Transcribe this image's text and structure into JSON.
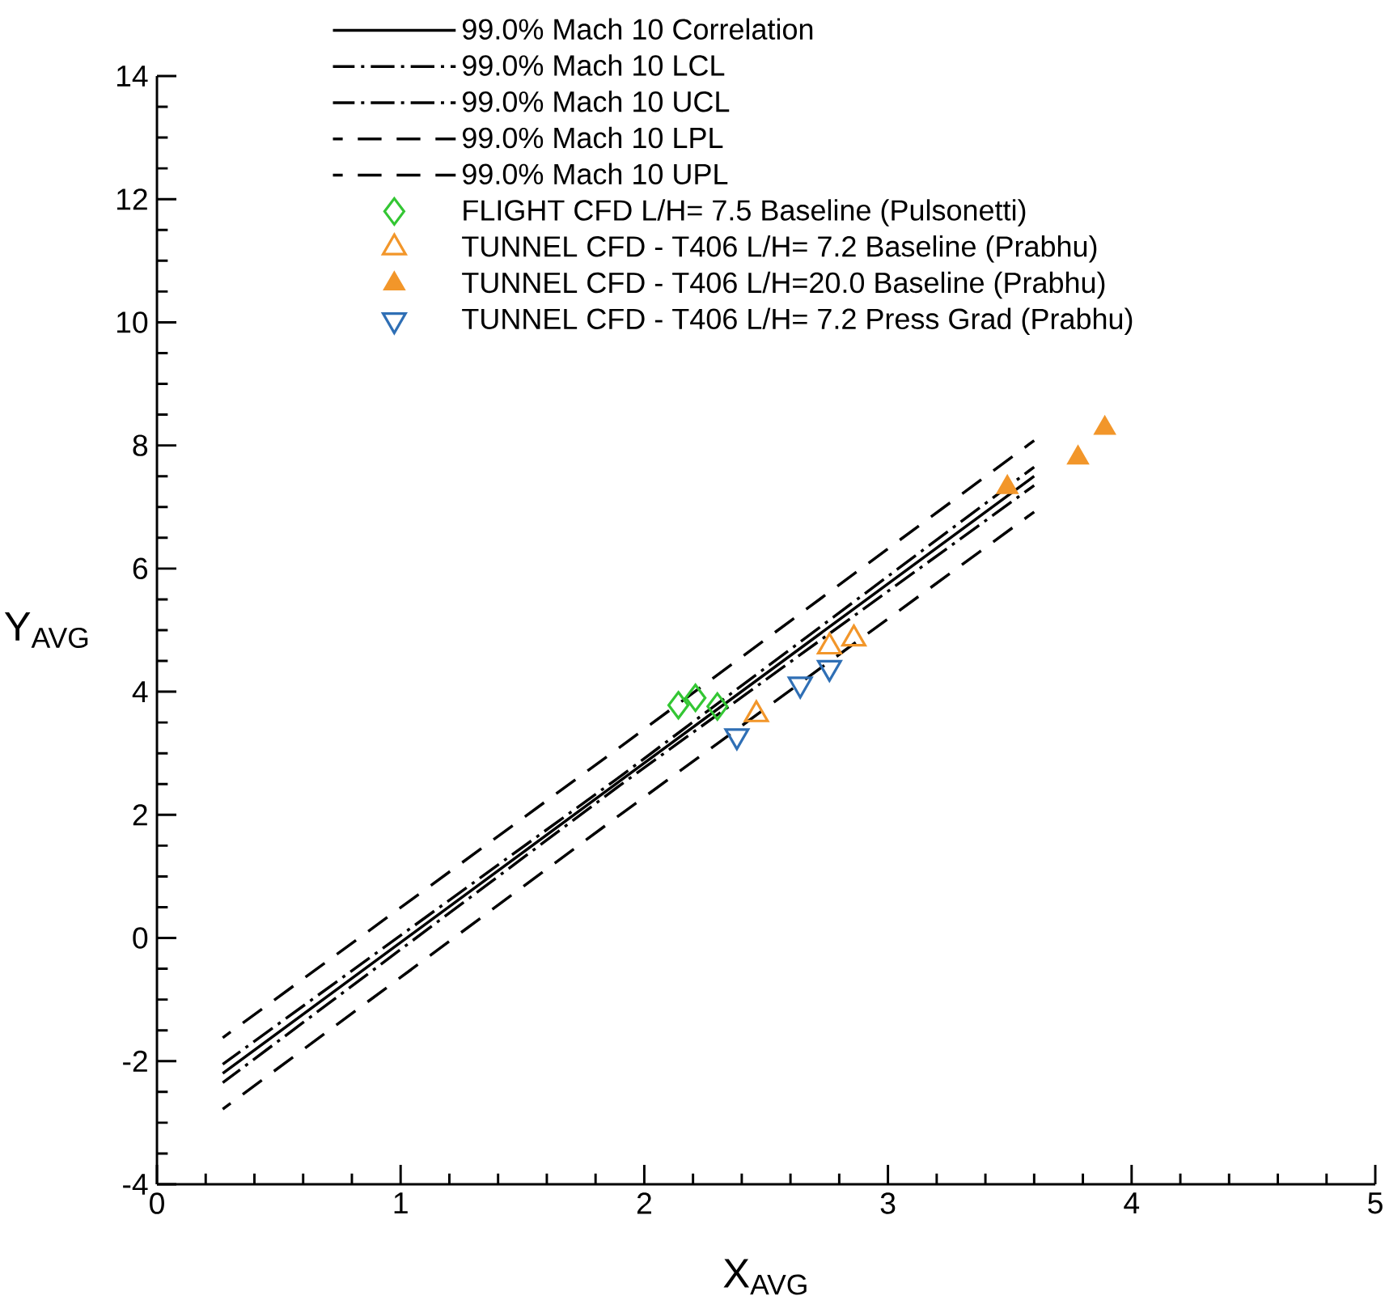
{
  "chart_data": {
    "type": "scatter",
    "xlabel": "X$_{AVG}$",
    "ylabel": "Y$_{AVG}$",
    "xlim": [
      0,
      5
    ],
    "ylim": [
      -4,
      14
    ],
    "xticks": [
      0,
      1,
      2,
      3,
      4,
      5
    ],
    "yticks": [
      -4,
      -2,
      0,
      2,
      4,
      6,
      8,
      10,
      12,
      14
    ],
    "legend": "top",
    "grid": false,
    "series": [
      {
        "name": "99.0% Mach 10 Correlation",
        "type": "line",
        "line_style": "solid",
        "color": "#000000",
        "x": [
          0.27,
          1.9,
          3.6
        ],
        "values": [
          -2.2,
          2.55,
          7.5
        ]
      },
      {
        "name": "99.0% Mach 10 LCL",
        "type": "line",
        "line_style": "dashdot",
        "color": "#000000",
        "x": [
          0.27,
          1.9,
          3.6
        ],
        "values": [
          -2.35,
          2.48,
          7.35
        ]
      },
      {
        "name": "99.0% Mach 10 UCL",
        "type": "line",
        "line_style": "dashdot",
        "color": "#000000",
        "x": [
          0.27,
          1.9,
          3.6
        ],
        "values": [
          -2.05,
          2.62,
          7.65
        ]
      },
      {
        "name": "99.0% Mach 10 LPL",
        "type": "line",
        "line_style": "dashed",
        "color": "#000000",
        "x": [
          0.27,
          1.9,
          3.6
        ],
        "values": [
          -2.78,
          2.0,
          6.92
        ]
      },
      {
        "name": "99.0% Mach 10 UPL",
        "type": "line",
        "line_style": "dashed",
        "color": "#000000",
        "x": [
          0.27,
          1.9,
          3.6
        ],
        "values": [
          -1.62,
          3.1,
          8.08
        ]
      },
      {
        "name": "FLIGHT   CFD            L/H=  7.5 Baseline (Pulsonetti)",
        "type": "scatter",
        "marker": "diamond",
        "color": "#33c633",
        "x": [
          2.14,
          2.21,
          2.3
        ],
        "values": [
          3.78,
          3.9,
          3.76
        ]
      },
      {
        "name": "TUNNEL CFD - T406   L/H=  7.2 Baseline (Prabhu)",
        "type": "scatter",
        "marker": "triangle",
        "color": "#f2962a",
        "x": [
          2.46,
          2.76,
          2.86
        ],
        "values": [
          3.63,
          4.73,
          4.86
        ]
      },
      {
        "name": "TUNNEL CFD - T406   L/H=20.0 Baseline (Prabhu)",
        "type": "scatter",
        "marker": "triangle-filled",
        "color": "#f2962a",
        "x": [
          3.49,
          3.78,
          3.89
        ],
        "values": [
          7.32,
          7.8,
          8.28
        ]
      },
      {
        "name": "TUNNEL CFD - T406   L/H=  7.2 Press Grad (Prabhu)",
        "type": "scatter",
        "marker": "triangle-down",
        "color": "#2f6fb5",
        "x": [
          2.38,
          2.64,
          2.76
        ],
        "values": [
          3.28,
          4.12,
          4.39
        ]
      }
    ]
  }
}
